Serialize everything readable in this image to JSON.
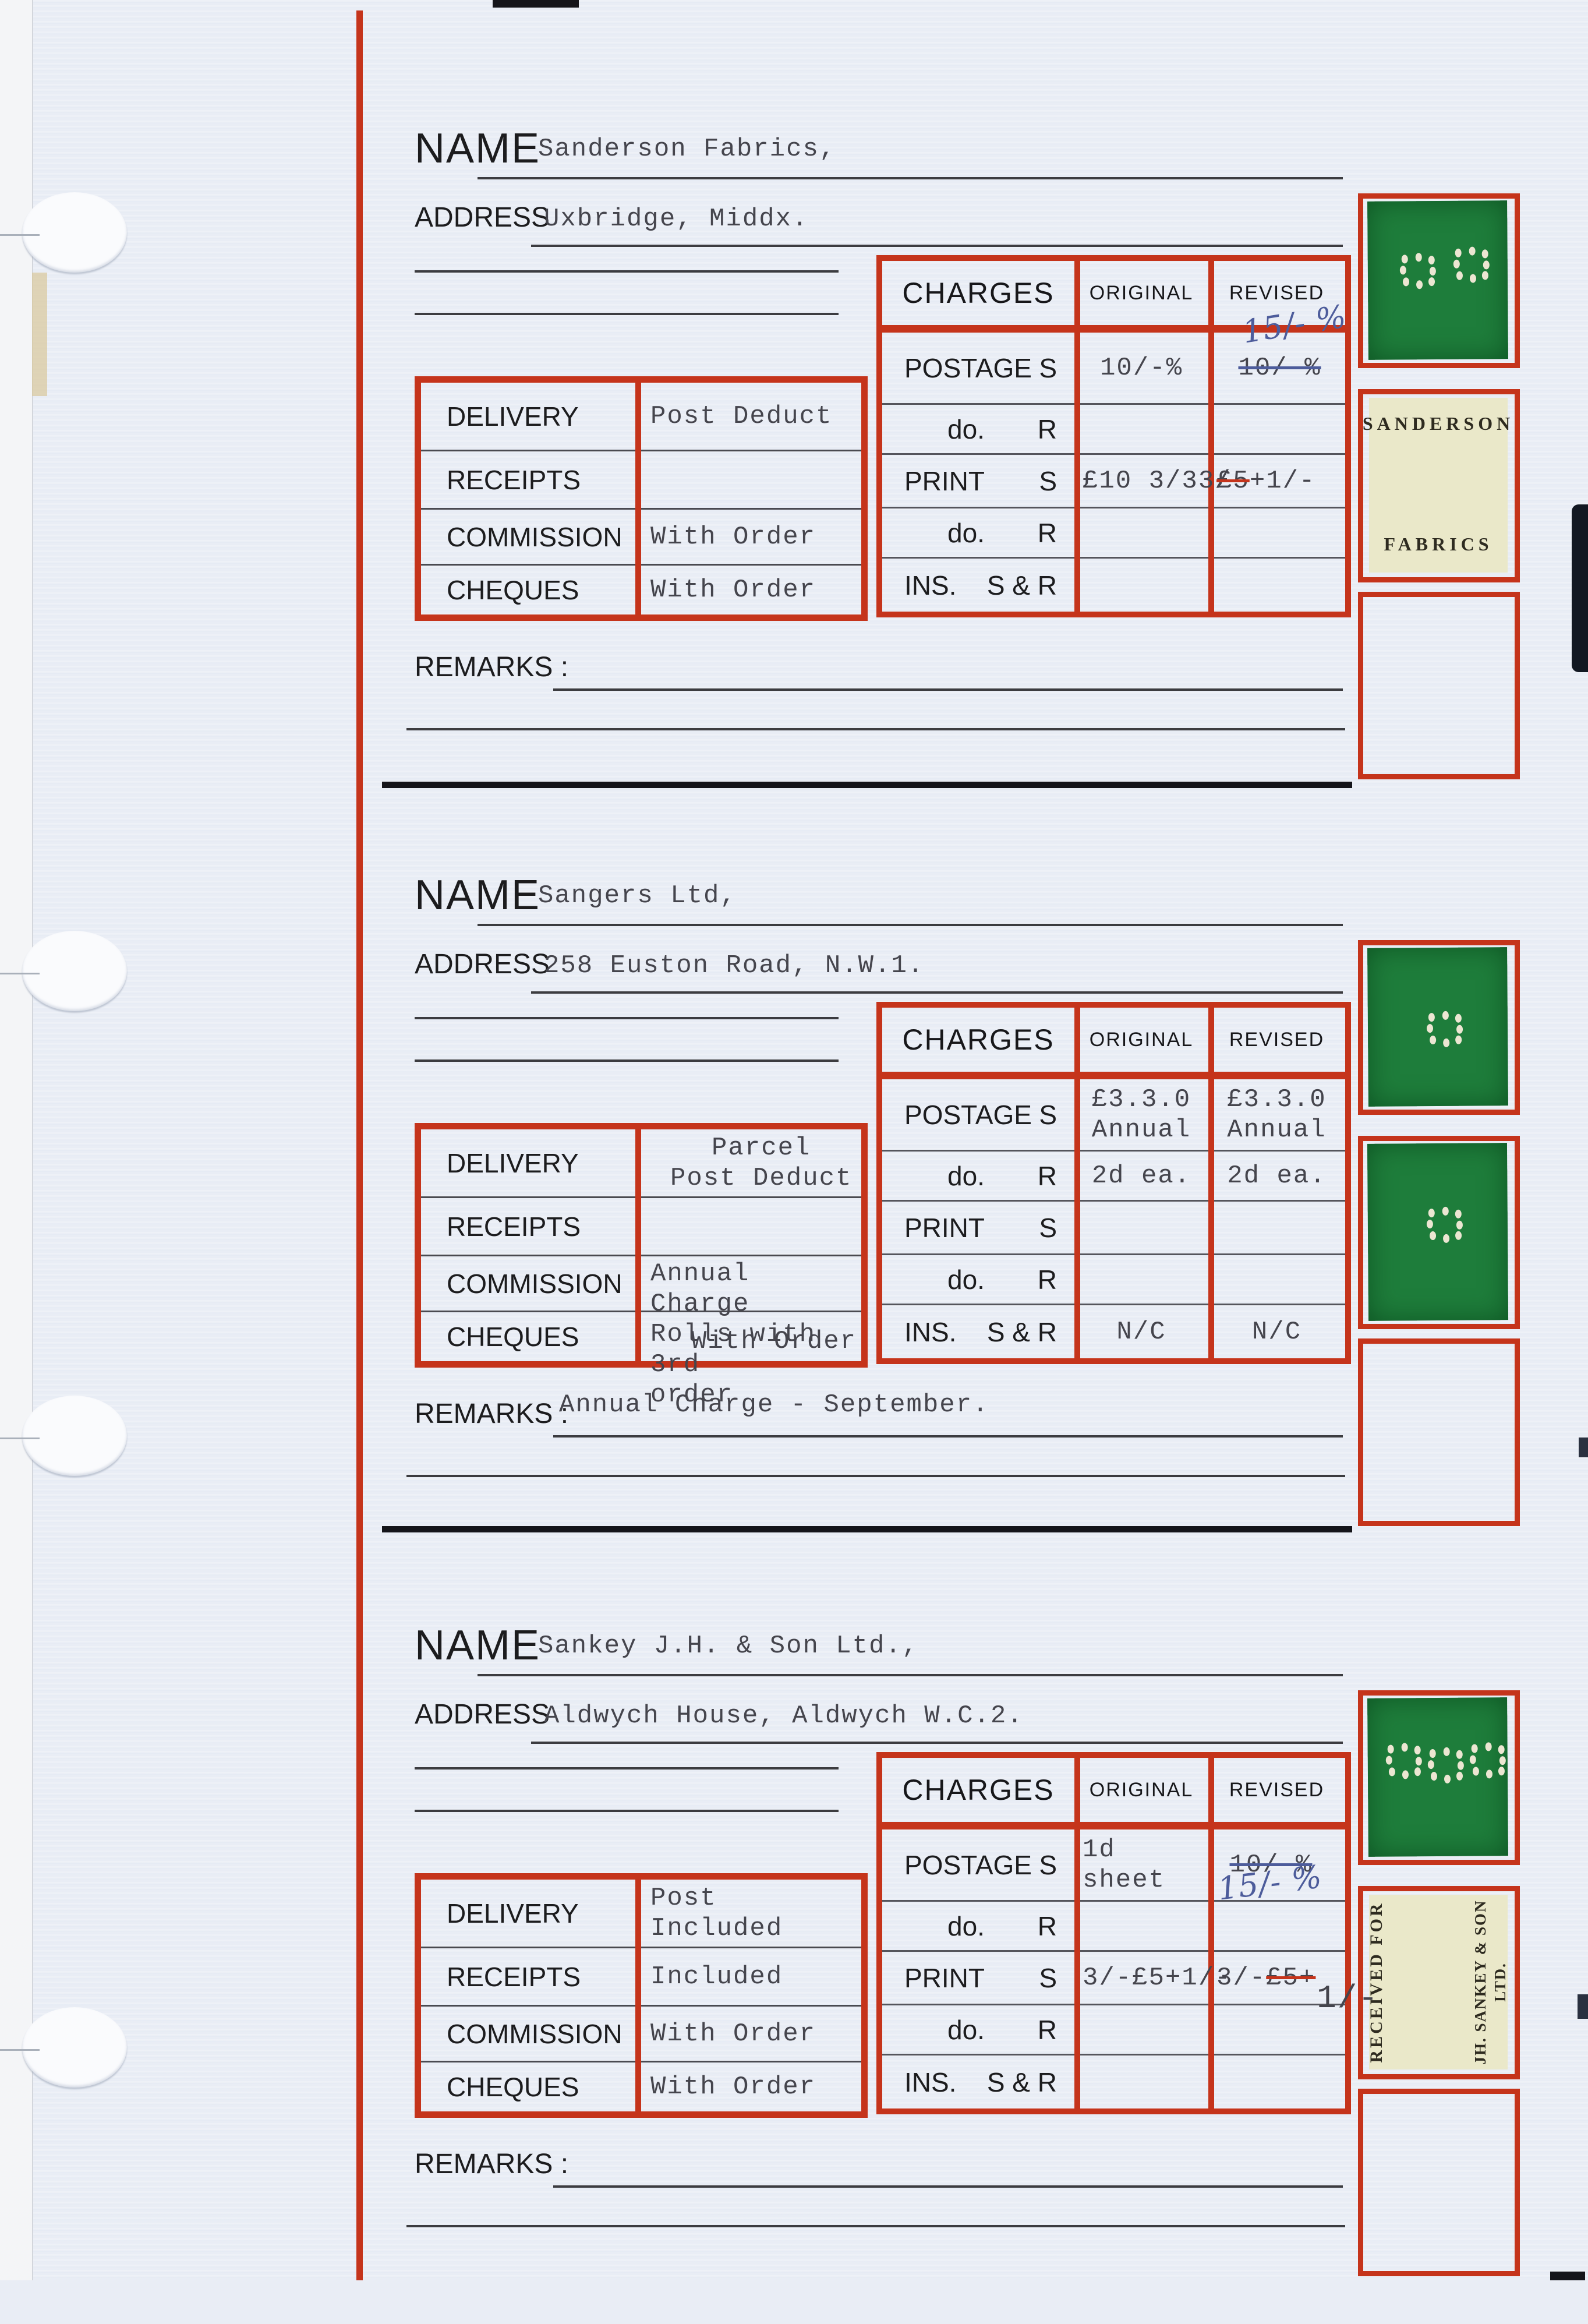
{
  "page": {
    "labels": {
      "name": "NAME",
      "address": "ADDRESS",
      "remarks": "REMARKS :",
      "delivery": "DELIVERY",
      "receipts": "RECEIPTS",
      "commission": "COMMISSION",
      "cheques": "CHEQUES",
      "charges": "CHARGES",
      "original": "ORIGINAL",
      "revised": "REVISED"
    },
    "charges_rows": [
      {
        "label": "POSTAGE",
        "suffix": "S"
      },
      {
        "label": "do.",
        "suffix": "R"
      },
      {
        "label": "PRINT",
        "suffix": "S"
      },
      {
        "label": "do.",
        "suffix": "R"
      },
      {
        "label": "INS.",
        "suffix": "S & R"
      }
    ],
    "colors": {
      "rule_red": "#c5341b",
      "swatch_green": "#1e7d3b",
      "label_cream": "#eae8c9",
      "ink_blue": "#4d5c9b"
    }
  },
  "records": [
    {
      "name": "Sanderson Fabrics,",
      "address": "Uxbridge, Middx.",
      "delivery": "Post Deduct",
      "receipts": "",
      "commission": "With Order",
      "cheques": "With Order",
      "charges": {
        "postage_s": {
          "original": "10/-%",
          "revised_struck": "10/-%",
          "revised_hand": "15/- %"
        },
        "postage_r": {
          "original": "",
          "revised": ""
        },
        "print_s": {
          "original": "£10 3/3",
          "original_over": "3/-",
          "revised_struck": "£5",
          "revised_post": "+1/-"
        },
        "print_r": {
          "original": "",
          "revised": ""
        },
        "ins": {
          "original": "",
          "revised": ""
        }
      },
      "remarks": "",
      "stamps": {
        "label_line1": "SANDERSON",
        "label_line2": "FABRICS"
      }
    },
    {
      "name": "Sangers Ltd,",
      "address": "258 Euston Road, N.W.1.",
      "delivery": "Parcel\nPost Deduct",
      "receipts": "",
      "commission": "Annual Charge\nRolls with 3rd\norder",
      "cheques": "With Order",
      "charges": {
        "postage_s": {
          "original": "£3.3.0\nAnnual",
          "revised": "£3.3.0\nAnnual"
        },
        "postage_r": {
          "original": "2d ea.",
          "revised": "2d ea."
        },
        "print_s": {
          "original": "",
          "revised": ""
        },
        "print_r": {
          "original": "",
          "revised": ""
        },
        "ins": {
          "original": "N/C",
          "revised": "N/C"
        }
      },
      "remarks": "Annual Charge - September.",
      "stamps": {}
    },
    {
      "name": "Sankey J.H. & Son Ltd.,",
      "address": "Aldwych House, Aldwych W.C.2.",
      "delivery": "Post Included",
      "receipts": "Included",
      "commission": "With Order",
      "cheques": "With Order",
      "charges": {
        "postage_s": {
          "original": "1d sheet",
          "revised_struck": "10/-%",
          "revised_hand": "15/- %"
        },
        "postage_r": {
          "original": "",
          "revised": ""
        },
        "print_s": {
          "original": "3/-£5+1/-",
          "revised_pre": "3/-",
          "revised_struck": "£5+",
          "revised_below": "1/-"
        },
        "print_r": {
          "original": "",
          "revised": ""
        },
        "ins": {
          "original": "",
          "revised": ""
        }
      },
      "remarks": "",
      "stamps": {
        "label_line1": "RECEIVED FOR",
        "label_line2a": "JH. SANKEY & SON",
        "label_line2b": "LTD."
      }
    }
  ]
}
